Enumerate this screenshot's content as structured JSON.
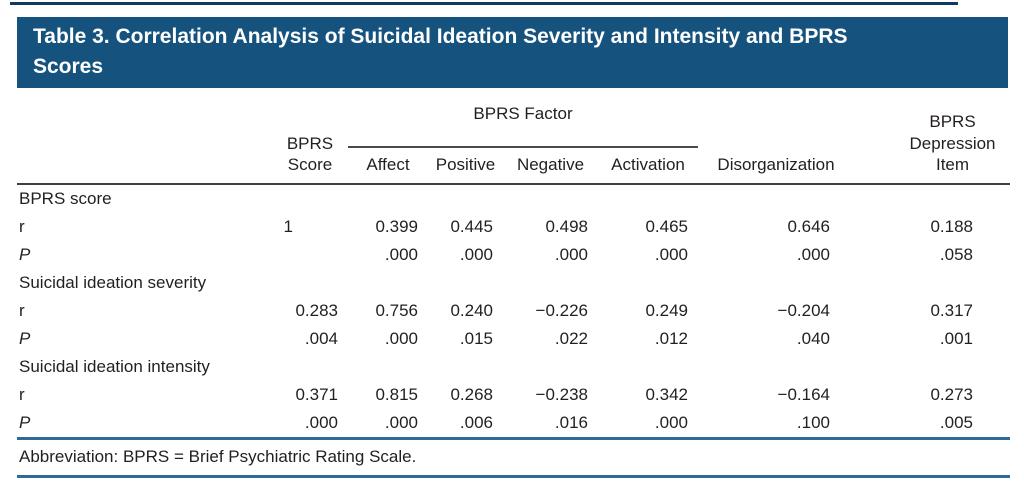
{
  "title": "Table 3. Correlation Analysis of Suicidal Ideation Severity and Intensity and BPRS\nScores",
  "colors": {
    "title_bg": "#15537E",
    "top_rule": "#123A5E",
    "blue_rule": "#2F6B9A",
    "header_rule": "#3F3F3F",
    "text": "#231F20"
  },
  "table": {
    "header": {
      "bprs_score": "BPRS\nScore",
      "factor_group": "BPRS Factor",
      "factors": [
        "Affect",
        "Positive",
        "Negative",
        "Activation"
      ],
      "disorganization": "Disorganization",
      "depression_item": "BPRS\nDepression\nItem"
    },
    "rows": [
      {
        "label": "BPRS score",
        "type": "group"
      },
      {
        "label": "r",
        "cells": [
          "1",
          "0.399",
          "0.445",
          "0.498",
          "0.465",
          "0.646",
          "0.188"
        ]
      },
      {
        "label": "P",
        "cells": [
          "",
          ".000",
          ".000",
          ".000",
          ".000",
          ".000",
          ".058"
        ]
      },
      {
        "label": "Suicidal ideation severity",
        "type": "group"
      },
      {
        "label": "r",
        "cells": [
          "0.283",
          "0.756",
          "0.240",
          "−0.226",
          "0.249",
          "−0.204",
          "0.317"
        ]
      },
      {
        "label": "P",
        "cells": [
          ".004",
          ".000",
          ".015",
          ".022",
          ".012",
          ".040",
          ".001"
        ]
      },
      {
        "label": "Suicidal ideation intensity",
        "type": "group"
      },
      {
        "label": "r",
        "cells": [
          "0.371",
          "0.815",
          "0.268",
          "−0.238",
          "0.342",
          "−0.164",
          "0.273"
        ]
      },
      {
        "label": "P",
        "cells": [
          ".000",
          ".000",
          ".006",
          ".016",
          ".000",
          ".100",
          ".005"
        ]
      }
    ],
    "footnote": "Abbreviation: BPRS = Brief Psychiatric Rating Scale."
  }
}
